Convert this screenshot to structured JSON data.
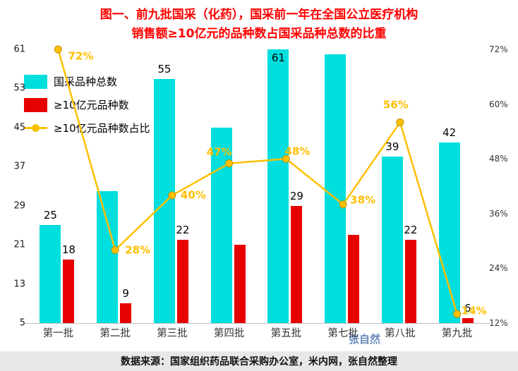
{
  "title": {
    "line1": "图一、前九批国采（化药），国采前一年在全国公立医疗机构",
    "line2": "销售额≥10亿元的品种数占国采品种总数的比重"
  },
  "colors": {
    "title": "#ff0000",
    "bar_total": "#00dede",
    "bar_ge10": "#e60000",
    "line": "#ffc000",
    "line_marker_stroke": "#bf9000",
    "percent_label": "#ffbf00",
    "watermark": "#5b7fb4",
    "axis_line": "#bfbfbf",
    "source_bg": "#e8e8e8"
  },
  "legend": [
    {
      "label": "国采品种总数"
    },
    {
      "label": "≥10亿元品种数"
    },
    {
      "label": "≥10亿元品种数占比"
    }
  ],
  "chart_data": {
    "type": "bar+line",
    "categories": [
      "第一批",
      "第二批",
      "第三批",
      "第四批",
      "第五批",
      "第七批",
      "第八批",
      "第九批"
    ],
    "series": [
      {
        "name": "国采品种总数",
        "type": "bar",
        "axis": "left",
        "color": "#00dede",
        "values": [
          25,
          32,
          55,
          45,
          61,
          60,
          39,
          42
        ],
        "shown_labels": [
          "25",
          "",
          "55",
          "",
          "61",
          "",
          "39",
          "42"
        ]
      },
      {
        "name": "≥10亿元品种数",
        "type": "bar",
        "axis": "left",
        "color": "#e60000",
        "values": [
          18,
          9,
          22,
          21,
          29,
          23,
          22,
          6
        ],
        "shown_labels": [
          "18",
          "9",
          "22",
          "",
          "29",
          "",
          "22",
          "6"
        ]
      },
      {
        "name": "≥10亿元品种数占比",
        "type": "line",
        "axis": "right",
        "color": "#ffc000",
        "values": [
          72,
          28,
          40,
          47,
          48,
          38,
          56,
          14
        ],
        "shown_labels": [
          "72%",
          "28%",
          "40%",
          "47%",
          "48%",
          "38%",
          "56%",
          "14%"
        ],
        "label_offsets": [
          [
            32,
            10
          ],
          [
            32,
            0
          ],
          [
            30,
            0
          ],
          [
            -14,
            -16
          ],
          [
            16,
            -10
          ],
          [
            28,
            -6
          ],
          [
            -6,
            -24
          ],
          [
            24,
            -4
          ]
        ]
      }
    ],
    "left_axis": {
      "min": 5,
      "max": 61,
      "ticks": [
        61,
        53,
        45,
        37,
        29,
        21,
        13,
        5
      ]
    },
    "right_axis": {
      "min": 12,
      "max": 72,
      "ticks": [
        "72%",
        "60%",
        "48%",
        "36%",
        "24%",
        "12%"
      ]
    },
    "grid": false,
    "legend_position": "inside-top-left"
  },
  "watermark": "张自然",
  "source": "数据来源：国家组织药品联合采购办公室，米内网，张自然整理"
}
